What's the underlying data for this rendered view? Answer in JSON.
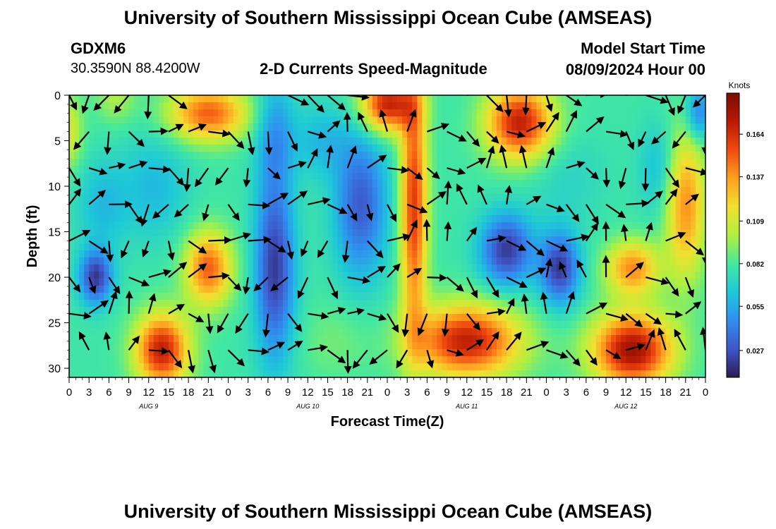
{
  "header": {
    "title": "University of Southern Mississippi Ocean Cube (AMSEAS)",
    "station_id": "GDXM6",
    "station_coords": "30.3590N  88.4200W",
    "plot_title": "2-D Currents Speed-Magnitude",
    "model_start_label": "Model Start Time",
    "model_start_value": "08/09/2024 Hour 00"
  },
  "footer": {
    "title": "University of Southern Mississippi Ocean Cube (AMSEAS)"
  },
  "chart_data": {
    "type": "heatmap",
    "xlabel": "Forecast Time(Z)",
    "ylabel": "Depth (ft)",
    "x_range_hours": [
      0,
      96
    ],
    "y_range_ft": [
      0,
      31
    ],
    "x_ticks": [
      "0",
      "3",
      "6",
      "9",
      "12",
      "15",
      "18",
      "21",
      "0",
      "3",
      "6",
      "9",
      "12",
      "15",
      "18",
      "21",
      "0",
      "3",
      "6",
      "9",
      "12",
      "15",
      "18",
      "21",
      "0",
      "3",
      "6",
      "9",
      "12",
      "15",
      "18",
      "21",
      "0"
    ],
    "day_labels": [
      {
        "label": "AUG 9",
        "hour": 12
      },
      {
        "label": "AUG 10",
        "hour": 36
      },
      {
        "label": "AUG 11",
        "hour": 60
      },
      {
        "label": "AUG 12",
        "hour": 84
      }
    ],
    "y_ticks": [
      0,
      5,
      10,
      15,
      20,
      25,
      30
    ],
    "colorbar": {
      "unit": "Knots",
      "ticks": [
        0.164,
        0.137,
        0.109,
        0.082,
        0.055,
        0.027
      ],
      "range": [
        0.01,
        0.19
      ],
      "colors": [
        "#2a1b4f",
        "#3f56c8",
        "#2f8ff0",
        "#1ec8d8",
        "#44e8a0",
        "#b0f040",
        "#f0e030",
        "#ffa020",
        "#f04a10",
        "#b81a04",
        "#7a0d02"
      ]
    },
    "speed_features": [
      {
        "hour": 4,
        "depth": 20,
        "speed": 0.02,
        "spread_h": 2.5,
        "spread_d": 3
      },
      {
        "hour": 5,
        "depth": 12,
        "speed": 0.06,
        "spread_h": 4,
        "spread_d": 5
      },
      {
        "hour": 0,
        "depth": 4,
        "speed": 0.11,
        "spread_h": 2,
        "spread_d": 4
      },
      {
        "hour": 7,
        "depth": 0,
        "speed": 0.1,
        "spread_h": 3,
        "spread_d": 3
      },
      {
        "hour": 14,
        "depth": 28,
        "speed": 0.17,
        "spread_h": 4,
        "spread_d": 4
      },
      {
        "hour": 21,
        "depth": 19,
        "speed": 0.15,
        "spread_h": 3.5,
        "spread_d": 4
      },
      {
        "hour": 21,
        "depth": 2,
        "speed": 0.15,
        "spread_h": 6,
        "spread_d": 3
      },
      {
        "hour": 13,
        "depth": 10,
        "speed": 0.06,
        "spread_h": 5,
        "spread_d": 6
      },
      {
        "hour": 31,
        "depth": 19,
        "speed": 0.02,
        "spread_h": 3,
        "spread_d": 10
      },
      {
        "hour": 31,
        "depth": 4,
        "speed": 0.05,
        "spread_h": 3,
        "spread_d": 6
      },
      {
        "hour": 40,
        "depth": 27,
        "speed": 0.09,
        "spread_h": 5,
        "spread_d": 4
      },
      {
        "hour": 44,
        "depth": 12,
        "speed": 0.03,
        "spread_h": 4,
        "spread_d": 8
      },
      {
        "hour": 38,
        "depth": 5,
        "speed": 0.06,
        "spread_h": 4,
        "spread_d": 4
      },
      {
        "hour": 48,
        "depth": 1,
        "speed": 0.17,
        "spread_h": 4,
        "spread_d": 3
      },
      {
        "hour": 52,
        "depth": 12,
        "speed": 0.16,
        "spread_h": 2,
        "spread_d": 14
      },
      {
        "hour": 60,
        "depth": 27,
        "speed": 0.17,
        "spread_h": 8,
        "spread_d": 4
      },
      {
        "hour": 66,
        "depth": 17,
        "speed": 0.02,
        "spread_h": 4,
        "spread_d": 4
      },
      {
        "hour": 68,
        "depth": 3,
        "speed": 0.17,
        "spread_h": 5,
        "spread_d": 4
      },
      {
        "hour": 74,
        "depth": 19,
        "speed": 0.02,
        "spread_h": 3,
        "spread_d": 4
      },
      {
        "hour": 75,
        "depth": 9,
        "speed": 0.07,
        "spread_h": 6,
        "spread_d": 5
      },
      {
        "hour": 85,
        "depth": 28,
        "speed": 0.18,
        "spread_h": 6,
        "spread_d": 4
      },
      {
        "hour": 85,
        "depth": 19,
        "speed": 0.14,
        "spread_h": 4,
        "spread_d": 3
      },
      {
        "hour": 93,
        "depth": 12,
        "speed": 0.14,
        "spread_h": 3,
        "spread_d": 8
      },
      {
        "hour": 95,
        "depth": 2,
        "speed": 0.04,
        "spread_h": 2,
        "spread_d": 3
      },
      {
        "hour": 89,
        "depth": 8,
        "speed": 0.06,
        "spread_h": 3,
        "spread_d": 5
      }
    ],
    "background_speed": 0.08,
    "vector_depths_ft": [
      0,
      4,
      8,
      12,
      16,
      20,
      24,
      28
    ],
    "vector_hour_step": 3
  }
}
